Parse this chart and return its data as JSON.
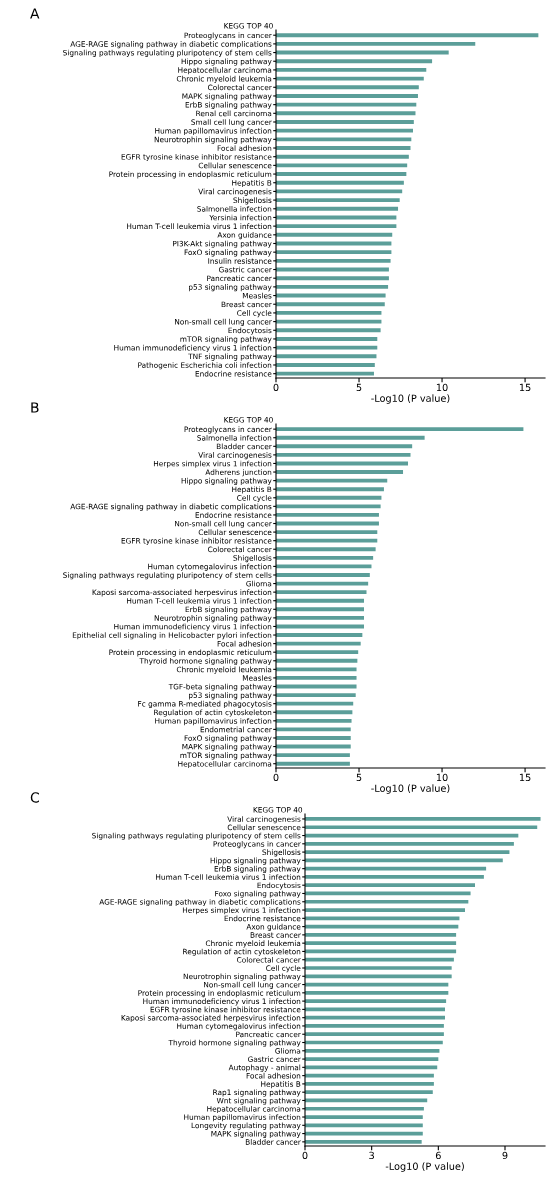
{
  "chart_data": [
    {
      "type": "bar",
      "orientation": "horizontal",
      "title": "A",
      "ylabel": "KEGG TOP 40",
      "xlabel": "-Log10 (P value)",
      "color": "#5b9e99",
      "xlim": [
        0,
        16.2
      ],
      "xticks": [
        0,
        5,
        10,
        15
      ],
      "grid": false,
      "legend": false,
      "categories": [
        "Proteoglycans in cancer",
        "AGE-RAGE signaling pathway in diabetic complications",
        "Signaling pathways regulating pluripotency of stem cells",
        "Hippo signaling pathway",
        "Hepatocellular carcinoma",
        "Chronic myeloid leukemia",
        "Colorectal cancer",
        "MAPK signaling pathway",
        "ErbB signaling pathway",
        "Renal cell carcinoma",
        "Small cell lung cancer",
        "Human papillomavirus infection",
        "Neurotrophin signaling pathway",
        "Focal adhesion",
        "EGFR tyrosine kinase inhibitor resistance",
        "Cellular senescence",
        "Protein processing in endoplasmic reticulum",
        "Hepatitis B",
        "Viral carcinogenesis",
        "Shigellosis",
        "Salmonella infection",
        "Yersinia infection",
        "Human T-cell leukemia virus 1 infection",
        "Axon guidance",
        "PI3K-Akt signaling pathway",
        "FoxO signaling pathway",
        "Insulin resistance",
        "Gastric cancer",
        "Pancreatic cancer",
        "p53 signaling pathway",
        "Measles",
        "Breast cancer",
        "Cell cycle",
        "Non-small cell lung cancer",
        "Endocytosis",
        "mTOR signaling pathway",
        "Human immunodeficiency virus 1 infection",
        "TNF signaling pathway",
        "Pathogenic Escherichia coli infection",
        "Endocrine resistance"
      ],
      "values": [
        15.8,
        12.0,
        10.4,
        9.4,
        9.05,
        8.9,
        8.6,
        8.55,
        8.45,
        8.4,
        8.3,
        8.25,
        8.15,
        8.1,
        8.0,
        7.9,
        7.85,
        7.7,
        7.6,
        7.45,
        7.35,
        7.25,
        7.25,
        7.0,
        6.95,
        6.95,
        6.9,
        6.8,
        6.8,
        6.75,
        6.6,
        6.55,
        6.35,
        6.35,
        6.3,
        6.1,
        6.1,
        6.05,
        5.95,
        5.9
      ]
    },
    {
      "type": "bar",
      "orientation": "horizontal",
      "title": "B",
      "ylabel": "KEGG TOP 40",
      "xlabel": "-Log10 (P value)",
      "color": "#5b9e99",
      "xlim": [
        0,
        16.2
      ],
      "xticks": [
        0,
        5,
        10,
        15
      ],
      "grid": false,
      "legend": false,
      "categories": [
        "Proteoglycans in cancer",
        "Salmonella infection",
        "Bladder cancer",
        "Viral carcinogenesis",
        "Herpes simplex virus 1 infection",
        "Adherens junction",
        "Hippo signaling pathway",
        "Hepatitis B",
        "Cell cycle",
        "AGE-RAGE signaling pathway in diabetic complications",
        "Endocrine resistance",
        "Non-small cell lung cancer",
        "Cellular senescence",
        "EGFR tyrosine kinase inhibitor resistance",
        "Colorectal cancer",
        "Shigellosis",
        "Human cytomegalovirus infection",
        "Signaling pathways regulating pluripotency of stem cells",
        "Glioma",
        "Kaposi sarcoma-associated herpesvirus infection",
        "Human T-cell leukemia virus 1 infection",
        "ErbB signaling pathway",
        "Neurotrophin signaling pathway",
        "Human immunodeficiency virus 1 infection",
        "Epithelial cell signaling in Helicobacter pylori infection",
        "Focal adhesion",
        "Protein processing in endoplasmic reticulum",
        "Thyroid hormone signaling pathway",
        "Chronic myeloid leukemia",
        "Measles",
        "TGF-beta signaling pathway",
        "p53 signaling pathway",
        "Fc gamma R-mediated phagocytosis",
        "Regulation of actin cytoskeleton",
        "Human papillomavirus infection",
        "Endometrial cancer",
        "FoxO signaling pathway",
        "MAPK signaling pathway",
        "mTOR signaling pathway",
        "Hepatocellular carcinoma"
      ],
      "values": [
        14.9,
        8.95,
        8.2,
        8.1,
        7.95,
        7.65,
        6.7,
        6.5,
        6.35,
        6.3,
        6.2,
        6.2,
        6.1,
        6.1,
        6.0,
        5.85,
        5.75,
        5.65,
        5.55,
        5.45,
        5.3,
        5.3,
        5.3,
        5.3,
        5.2,
        5.1,
        4.95,
        4.9,
        4.85,
        4.85,
        4.85,
        4.8,
        4.65,
        4.6,
        4.55,
        4.5,
        4.5,
        4.5,
        4.45,
        4.45
      ]
    },
    {
      "type": "bar",
      "orientation": "horizontal",
      "title": "C",
      "ylabel": "KEGG TOP 40",
      "xlabel": "-Log10 (P value)",
      "color": "#5b9e99",
      "xlim": [
        0,
        10.8
      ],
      "xticks": [
        0,
        3,
        6,
        9
      ],
      "grid": false,
      "legend": false,
      "categories": [
        "Viral carcinogenesis",
        "Cellular senescence",
        "Signaling pathways regulating pluripotency of stem cells",
        "Proteoglycans in cancer",
        "Shigellosis",
        "Hippo signaling pathway",
        "ErbB signaling pathway",
        "Human T-cell leukemia virus 1 infection",
        "Endocytosis",
        "Foxo signaling pathway",
        "AGE-RAGE signaling pathway in diabetic complications",
        "Herpes simplex virus 1 infection",
        "Endocrine resistance",
        "Axon guidance",
        "Breast cancer",
        "Chronic myeloid leukemia",
        "Regulation of actin cytoskeleton",
        "Colorectal cancer",
        "Cell cycle",
        "Neurotrophin signaling pathway",
        "Non-small cell lung cancer",
        "Protein processing in endoplasmic reticulum",
        "Human immunodeficiency virus 1 infection",
        "EGFR tyrosine kinase inhibitor resistance",
        "Kaposi sarcoma-associated herpesvirus infection",
        "Human cytomegalovirus infection",
        "Pancreatic cancer",
        "Thyroid hormone signaling pathway",
        "Glioma",
        "Gastric cancer",
        "Autophagy - animal",
        "Focal adhesion",
        "Hepatitis B",
        "Rap1 signaling pathway",
        "Wnt signaling pathway",
        "Hepatocellular carcinoma",
        "Human papillomavirus infection",
        "Longevity regulating pathway",
        "MAPK signaling pathway",
        "Bladder cancer"
      ],
      "values": [
        10.6,
        10.45,
        9.6,
        9.4,
        9.2,
        8.9,
        8.15,
        8.05,
        7.65,
        7.45,
        7.35,
        7.2,
        6.95,
        6.9,
        6.8,
        6.8,
        6.8,
        6.7,
        6.6,
        6.6,
        6.45,
        6.45,
        6.35,
        6.3,
        6.3,
        6.25,
        6.25,
        6.2,
        6.05,
        6.0,
        5.95,
        5.8,
        5.8,
        5.75,
        5.5,
        5.35,
        5.3,
        5.3,
        5.3,
        5.25
      ]
    }
  ]
}
